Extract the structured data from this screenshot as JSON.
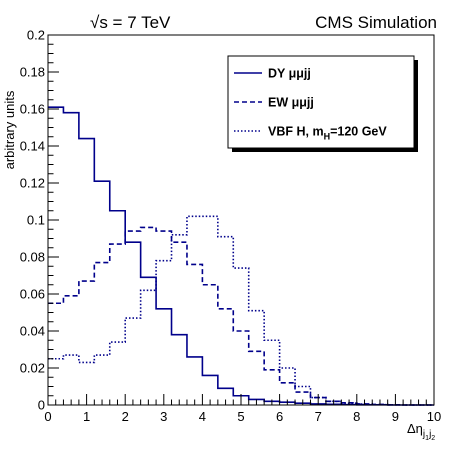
{
  "header": {
    "energy": "√s = 7 TeV",
    "experiment": "CMS Simulation"
  },
  "chart_data": {
    "type": "histogram",
    "ylabel": "arbitrary units",
    "xlabel": "Δηj₁j₂",
    "xlim": [
      0,
      10
    ],
    "ylim": [
      0,
      0.2
    ],
    "bin_width": 0.4,
    "x_ticks": [
      "0",
      "1",
      "2",
      "3",
      "4",
      "5",
      "6",
      "7",
      "8",
      "9",
      "10"
    ],
    "y_ticks": [
      "0",
      "0.02",
      "0.04",
      "0.06",
      "0.08",
      "0.1",
      "0.12",
      "0.14",
      "0.16",
      "0.18",
      "0.2"
    ],
    "legend_position": "top-right",
    "series": [
      {
        "name": "DY μμjj",
        "style": "solid",
        "color": "#00008b",
        "values": [
          0.161,
          0.158,
          0.144,
          0.121,
          0.105,
          0.088,
          0.069,
          0.052,
          0.038,
          0.026,
          0.016,
          0.009,
          0.005,
          0.003,
          0.002,
          0.0015,
          0.001,
          0.0006,
          0.0004,
          0.0002,
          0.0001,
          0.0001,
          0.0,
          0.0,
          0.0
        ]
      },
      {
        "name": "EW μμjj",
        "style": "dashed",
        "color": "#00008b",
        "values": [
          0.055,
          0.059,
          0.067,
          0.077,
          0.087,
          0.094,
          0.096,
          0.094,
          0.088,
          0.076,
          0.065,
          0.052,
          0.04,
          0.029,
          0.019,
          0.012,
          0.007,
          0.004,
          0.002,
          0.0012,
          0.0006,
          0.0003,
          0.0001,
          0.0,
          0.0
        ]
      },
      {
        "name": "VBF H, m",
        "name_sub": "H",
        "name_suffix": "=120 GeV",
        "style": "dotted",
        "color": "#00008b",
        "values": [
          0.025,
          0.027,
          0.023,
          0.027,
          0.034,
          0.047,
          0.062,
          0.078,
          0.092,
          0.102,
          0.102,
          0.091,
          0.074,
          0.051,
          0.035,
          0.02,
          0.01,
          0.004,
          0.002,
          0.001,
          0.0005,
          0.0002,
          0.0001,
          0.0,
          0.0
        ]
      }
    ]
  }
}
